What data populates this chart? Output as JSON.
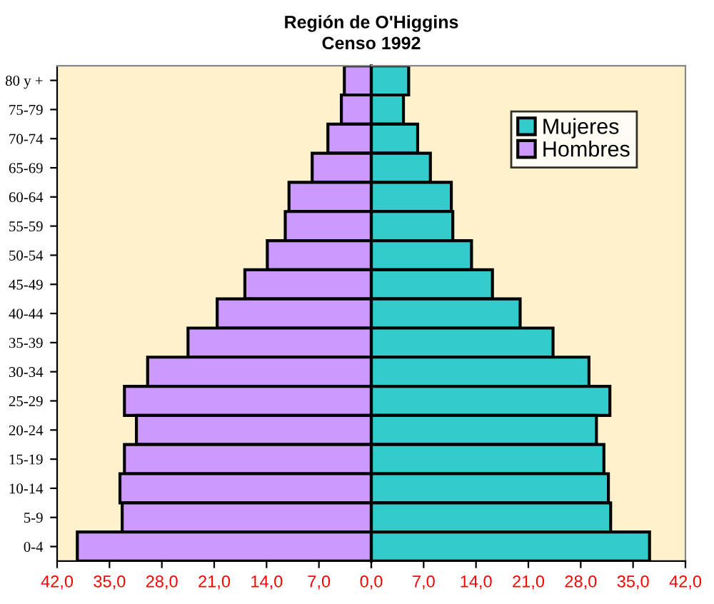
{
  "chart_data": [
    {
      "type": "bar",
      "orientation": "horizontal",
      "title": "Región de O'Higgins",
      "subtitle": "Censo 1992",
      "categories": [
        "80 y +",
        "75-79",
        "70-74",
        "65-69",
        "60-64",
        "55-59",
        "50-54",
        "45-49",
        "40-44",
        "35-39",
        "30-34",
        "25-29",
        "20-24",
        "15-19",
        "10-14",
        "5-9",
        "0-4"
      ],
      "series": [
        {
          "name": "Hombres",
          "color": "#cc99ff",
          "values": [
            3.6,
            4.0,
            5.8,
            7.9,
            11.0,
            11.5,
            13.9,
            16.9,
            20.6,
            24.5,
            29.9,
            33.0,
            31.4,
            33.0,
            33.6,
            33.3,
            39.3
          ]
        }
      ],
      "xlim": [
        42,
        0
      ],
      "xticks": [
        {
          "value": 42,
          "label": "42,0"
        },
        {
          "value": 35,
          "label": "35,0"
        },
        {
          "value": 28,
          "label": "28,0"
        },
        {
          "value": 21,
          "label": "21,0"
        },
        {
          "value": 14,
          "label": "14,0"
        },
        {
          "value": 7,
          "label": "7,0"
        },
        {
          "value": 0,
          "label": "0,0"
        }
      ],
      "grid": false
    },
    {
      "type": "bar",
      "orientation": "horizontal",
      "categories": [
        null,
        null,
        null,
        null,
        null,
        null,
        null,
        null,
        null,
        null,
        null,
        null,
        null,
        null,
        null,
        null,
        null
      ],
      "series": [
        {
          "name": "Mujeres",
          "color": "#33cccc",
          "values": [
            5.0,
            4.3,
            6.2,
            7.9,
            10.7,
            10.9,
            13.4,
            16.2,
            19.9,
            24.3,
            29.1,
            31.9,
            30.1,
            31.1,
            31.7,
            32.0,
            37.2
          ]
        }
      ],
      "xlim": [
        0,
        42
      ],
      "xticks": [
        {
          "value": 0,
          "label": null
        },
        {
          "value": 7,
          "label": "7,0"
        },
        {
          "value": 14,
          "label": "14,0"
        },
        {
          "value": 21,
          "label": "21,0"
        },
        {
          "value": 28,
          "label": "28,0"
        },
        {
          "value": 35,
          "label": "35,0"
        },
        {
          "value": 42,
          "label": "42,0"
        }
      ],
      "tick_labels": "x",
      "grid": false,
      "legend": "top right"
    }
  ]
}
